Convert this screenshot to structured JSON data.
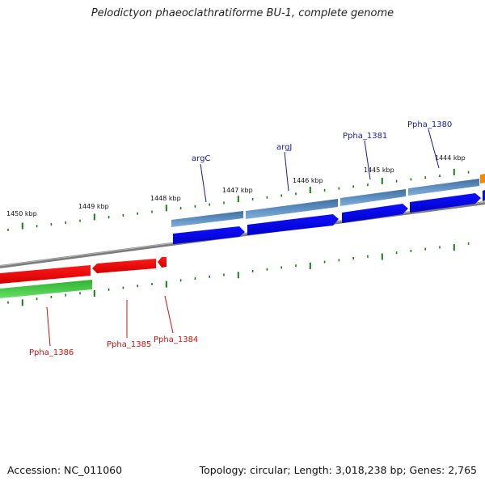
{
  "header": {
    "title": "Pelodictyon phaeoclathratiforme BU-1, complete genome"
  },
  "footer": {
    "accession": "Accession: NC_011060",
    "summary": "Topology: circular; Length: 3,018,238 bp; Genes: 2,765"
  },
  "scale": {
    "unit": "kbp",
    "ticks": [
      "1450 kbp",
      "1449 kbp",
      "1448 kbp",
      "1447 kbp",
      "1446 kbp",
      "1445 kbp",
      "1444 kbp"
    ]
  },
  "genes_top": [
    {
      "name": "argC",
      "color": "#1a1aa0"
    },
    {
      "name": "argJ",
      "color": "#1a1aa0"
    },
    {
      "name": "Ppha_1381",
      "color": "#1a1aa0"
    },
    {
      "name": "Ppha_1380",
      "color": "#1a1aa0"
    }
  ],
  "genes_bottom": [
    {
      "name": "Ppha_1386",
      "color": "#cc1111"
    },
    {
      "name": "Ppha_1385",
      "color": "#cc1111"
    },
    {
      "name": "Ppha_1384",
      "color": "#cc1111"
    }
  ],
  "colors": {
    "forward_cds": "#0a0aee",
    "forward_gene": "#4a7fb0",
    "reverse_cds": "#ee0f0f",
    "reverse_gene": "#3ec23e",
    "backbone": "#808080",
    "ticks": "#1a7a1a",
    "partial": "#f08a00"
  }
}
